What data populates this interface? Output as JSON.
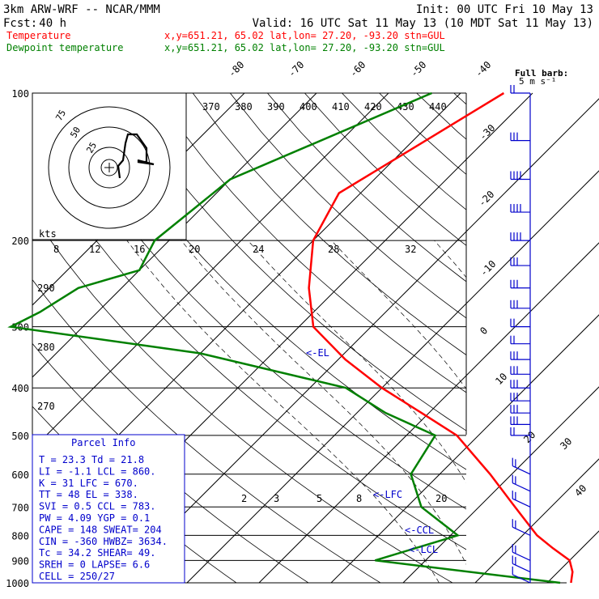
{
  "header": {
    "model": "3km ARW-WRF -- NCAR/MMM",
    "init": "Init: 00 UTC Fri 10 May 13",
    "fcst_label": "Fcst:",
    "fcst_value": "40 h",
    "valid": "Valid: 16 UTC Sat 11 May 13 (10 MDT Sat 11 May 13)",
    "temp_label": "Temperature",
    "temp_info": "x,y=651.21, 65.02   lat,lon= 27.20, -93.20  stn=GUL",
    "dew_label": "Dewpoint temperature",
    "dew_info": "x,y=651.21, 65.02   lat,lon= 27.20, -93.20  stn=GUL",
    "barb_title": "Full barb:",
    "barb_unit": "5 m s⁻¹"
  },
  "colors": {
    "temperature": "#ff0000",
    "dewpoint": "#008000",
    "axes": "#000000",
    "parcel": "#0000cc",
    "barb": "#0000cc",
    "dry_adiabat": "#000000"
  },
  "chart_data": {
    "type": "skew-t",
    "pressure_levels": [
      "100",
      "200",
      "300",
      "400",
      "500",
      "600",
      "700",
      "800",
      "900",
      "1000"
    ],
    "isotherm_labels": [
      "-80",
      "-70",
      "-60",
      "-50",
      "-40",
      "-30",
      "-20",
      "-10",
      "0",
      "10",
      "20",
      "30",
      "40"
    ],
    "theta_labels": [
      "370",
      "380",
      "390",
      "400",
      "410",
      "420",
      "430",
      "440"
    ],
    "theta_low_labels": [
      "290",
      "280",
      "270"
    ],
    "hodo_speeds": [
      "8",
      "12",
      "16",
      "20",
      "24",
      "28",
      "32"
    ],
    "hodo_unit": "kts",
    "hodo_rings": [
      "75",
      "50",
      "25"
    ],
    "mixing_ratio_labels": [
      "2",
      "3",
      "5",
      "8",
      "20"
    ],
    "markers": {
      "el": "<-EL",
      "lfc": "<-LFC",
      "ccl": "<-CCL",
      "lcl": "<-LCL"
    },
    "temperature": {
      "name": "Temperature",
      "points": [
        [
          100,
          -54
        ],
        [
          130,
          -59
        ],
        [
          160,
          -63
        ],
        [
          200,
          -60
        ],
        [
          250,
          -54
        ],
        [
          300,
          -48
        ],
        [
          350,
          -39
        ],
        [
          400,
          -30
        ],
        [
          450,
          -21
        ],
        [
          500,
          -13
        ],
        [
          600,
          -3
        ],
        [
          700,
          5
        ],
        [
          800,
          12
        ],
        [
          850,
          16
        ],
        [
          900,
          20
        ],
        [
          950,
          22
        ],
        [
          1000,
          23.3
        ]
      ]
    },
    "dewpoint": {
      "name": "Dewpoint temperature",
      "points": [
        [
          100,
          -64
        ],
        [
          150,
          -80
        ],
        [
          200,
          -82
        ],
        [
          230,
          -80
        ],
        [
          250,
          -86
        ],
        [
          280,
          -88
        ],
        [
          300,
          -90
        ],
        [
          340,
          -60
        ],
        [
          400,
          -35
        ],
        [
          450,
          -26
        ],
        [
          500,
          -16
        ],
        [
          600,
          -14
        ],
        [
          700,
          -8
        ],
        [
          800,
          1
        ],
        [
          900,
          -7
        ],
        [
          1000,
          21.8
        ]
      ]
    },
    "wind_barbs": [
      {
        "p": 100,
        "spd": 10,
        "dir": 300
      },
      {
        "p": 125,
        "spd": 15,
        "dir": 290
      },
      {
        "p": 150,
        "spd": 20,
        "dir": 290
      },
      {
        "p": 175,
        "spd": 20,
        "dir": 290
      },
      {
        "p": 200,
        "spd": 20,
        "dir": 290
      },
      {
        "p": 225,
        "spd": 15,
        "dir": 290
      },
      {
        "p": 250,
        "spd": 15,
        "dir": 290
      },
      {
        "p": 275,
        "spd": 15,
        "dir": 290
      },
      {
        "p": 300,
        "spd": 10,
        "dir": 300
      },
      {
        "p": 325,
        "spd": 10,
        "dir": 300
      },
      {
        "p": 350,
        "spd": 15,
        "dir": 280
      },
      {
        "p": 375,
        "spd": 15,
        "dir": 280
      },
      {
        "p": 400,
        "spd": 15,
        "dir": 280
      },
      {
        "p": 425,
        "spd": 15,
        "dir": 280
      },
      {
        "p": 450,
        "spd": 15,
        "dir": 270
      },
      {
        "p": 475,
        "spd": 15,
        "dir": 270
      },
      {
        "p": 500,
        "spd": 10,
        "dir": 270
      },
      {
        "p": 600,
        "spd": 10,
        "dir": 200
      },
      {
        "p": 650,
        "spd": 10,
        "dir": 200
      },
      {
        "p": 700,
        "spd": 10,
        "dir": 190
      },
      {
        "p": 800,
        "spd": 10,
        "dir": 170
      },
      {
        "p": 900,
        "spd": 10,
        "dir": 160
      },
      {
        "p": 950,
        "spd": 10,
        "dir": 160
      },
      {
        "p": 1000,
        "spd": 5,
        "dir": 150
      }
    ]
  },
  "parcel": {
    "title": "Parcel Info",
    "rows": [
      "T   =   23.3  Td  =  21.8",
      "LI  =   -1.1  LCL =  860.",
      "K   =     31  LFC =  670.",
      "TT  =     48  EL  =  338.",
      "SVI =    0.5  CCL =  783.",
      "PW  =   4.09  YGP =   0.1",
      "CAPE =   148  SWEAT=  204",
      "CIN  =  -360  HWBZ= 3634.",
      "Tc   =  34.2  SHEAR=  49.",
      "SREH =     0  LAPSE=  6.6",
      "CELL = 250/27"
    ]
  }
}
